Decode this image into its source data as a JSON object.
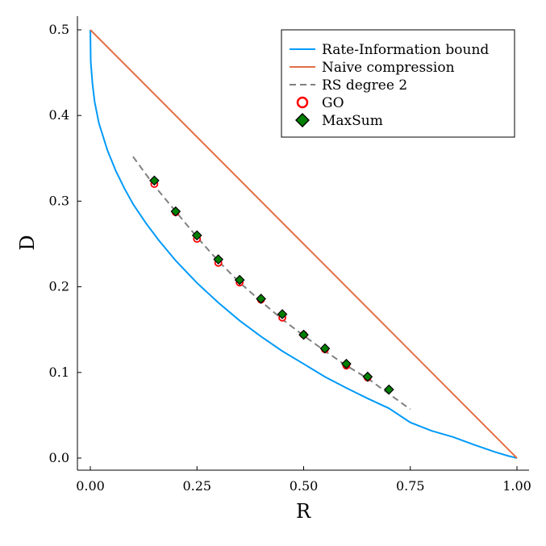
{
  "chart_data": {
    "type": "line",
    "xlabel": "R",
    "ylabel": "D",
    "xlim": [
      0,
      1
    ],
    "ylim": [
      0,
      0.5
    ],
    "x_ticks": [
      0,
      0.25,
      0.5,
      0.75,
      1.0
    ],
    "x_tick_labels": [
      "0.00",
      "0.25",
      "0.50",
      "0.75",
      "1.00"
    ],
    "y_ticks": [
      0,
      0.1,
      0.2,
      0.3,
      0.4,
      0.5
    ],
    "y_tick_labels": [
      "0.0",
      "0.1",
      "0.2",
      "0.3",
      "0.4",
      "0.5"
    ],
    "grid": false,
    "legend_position": "top-right",
    "series": [
      {
        "name": "Rate-Information bound",
        "kind": "line",
        "color": "#009af9",
        "x": [
          0,
          0.001,
          0.005,
          0.01,
          0.02,
          0.04,
          0.06,
          0.08,
          0.1,
          0.13,
          0.16,
          0.2,
          0.25,
          0.3,
          0.35,
          0.4,
          0.45,
          0.5,
          0.55,
          0.6,
          0.65,
          0.7,
          0.75,
          0.8,
          0.85,
          0.9,
          0.95,
          0.98,
          1.0
        ],
        "y": [
          0.5,
          0.4627,
          0.4372,
          0.4163,
          0.3912,
          0.3595,
          0.335,
          0.3148,
          0.2967,
          0.2745,
          0.2546,
          0.2306,
          0.2045,
          0.1815,
          0.1605,
          0.142,
          0.1249,
          0.11,
          0.0949,
          0.0819,
          0.0696,
          0.0581,
          0.0416,
          0.0318,
          0.0247,
          0.0155,
          0.0069,
          0.0025,
          0.0
        ]
      },
      {
        "name": "Naive compression",
        "kind": "line",
        "color": "#e26f46",
        "x": [
          0,
          1
        ],
        "y": [
          0.5,
          0
        ]
      },
      {
        "name": "RS degree 2",
        "kind": "dashed-line",
        "color": "#808080",
        "x": [
          0.1,
          0.15,
          0.2,
          0.25,
          0.3,
          0.35,
          0.4,
          0.45,
          0.5,
          0.55,
          0.6,
          0.65,
          0.7,
          0.75
        ],
        "y": [
          0.352,
          0.318,
          0.288,
          0.258,
          0.23,
          0.205,
          0.183,
          0.162,
          0.143,
          0.125,
          0.108,
          0.093,
          0.075,
          0.057
        ]
      },
      {
        "name": "GO",
        "kind": "scatter",
        "marker": "circle",
        "color": "#ff0000",
        "x": [
          0.15,
          0.2,
          0.25,
          0.3,
          0.35,
          0.4,
          0.45,
          0.5,
          0.55,
          0.6,
          0.65
        ],
        "y": [
          0.32,
          0.287,
          0.256,
          0.228,
          0.205,
          0.185,
          0.164,
          0.144,
          0.127,
          0.108,
          0.094
        ]
      },
      {
        "name": "MaxSum",
        "kind": "scatter",
        "marker": "diamond",
        "color": "#008000",
        "x": [
          0.15,
          0.2,
          0.25,
          0.3,
          0.35,
          0.4,
          0.45,
          0.5,
          0.55,
          0.6,
          0.65,
          0.7
        ],
        "y": [
          0.324,
          0.288,
          0.26,
          0.232,
          0.208,
          0.186,
          0.168,
          0.144,
          0.128,
          0.11,
          0.095,
          0.08
        ]
      }
    ]
  }
}
